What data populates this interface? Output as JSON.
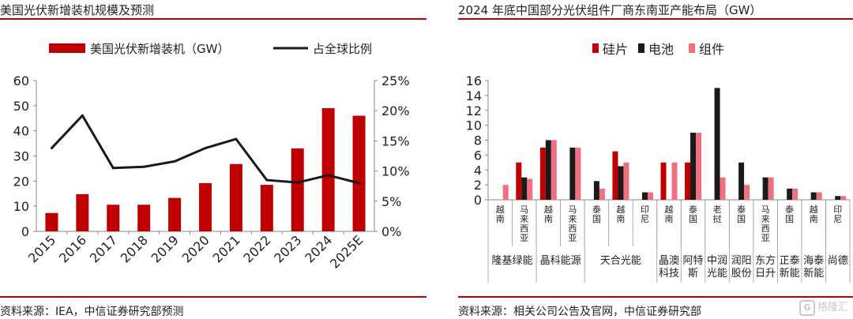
{
  "left": {
    "title": "美国光伏新增装机规模及预测",
    "source": "资料来源：IEA，中信证券研究部预测",
    "colors": {
      "bar": "#c00000",
      "line": "#1a1a1a"
    },
    "chart_data": {
      "type": "bar",
      "categories": [
        "2015",
        "2016",
        "2017",
        "2018",
        "2019",
        "2020",
        "2021",
        "2022",
        "2023",
        "2024",
        "2025E"
      ],
      "series": [
        {
          "name": "美国光伏新增装机（GW）",
          "type": "bar",
          "axis": "left",
          "values": [
            7.3,
            14.8,
            10.6,
            10.6,
            13.3,
            19.2,
            26.8,
            18.5,
            33,
            49,
            46
          ]
        },
        {
          "name": "占全球比例",
          "type": "line",
          "axis": "right",
          "values": [
            13.8,
            19.2,
            10.5,
            10.7,
            11.6,
            13.8,
            15.3,
            8.5,
            8.1,
            9.3,
            8.0
          ]
        }
      ],
      "ylim": [
        0,
        60
      ],
      "yticks": [
        "0",
        "10",
        "20",
        "30",
        "40",
        "50",
        "60"
      ],
      "y2lim": [
        0,
        25
      ],
      "y2ticks": [
        "0%",
        "5%",
        "10%",
        "15%",
        "20%",
        "25%"
      ],
      "legend": "top",
      "grid": false
    }
  },
  "right": {
    "title": "2024 年底中国部分光伏组件厂商东南亚产能布局（GW）",
    "source": "资料来源：相关公司公告及官网，中信证券研究部",
    "colors": {
      "硅片": "#c00000",
      "电池": "#1a1a1a",
      "组件": "#f07080"
    },
    "chart_data": {
      "type": "bar",
      "series_names": [
        "硅片",
        "电池",
        "组件"
      ],
      "categories": [
        "越南",
        "马来西亚",
        "越南",
        "马来西亚",
        "泰国",
        "越南",
        "印尼",
        "越南",
        "泰国",
        "老挝",
        "泰国",
        "马来西亚",
        "泰国",
        "越南",
        "印尼"
      ],
      "series": [
        {
          "name": "硅片",
          "values": [
            0,
            5,
            7,
            0,
            0,
            6.5,
            0,
            5,
            5,
            0,
            0,
            0,
            0,
            0,
            0
          ]
        },
        {
          "name": "电池",
          "values": [
            0,
            3,
            8,
            7,
            2.5,
            4.5,
            1,
            0,
            9,
            15,
            5,
            3,
            1.5,
            1,
            0.5
          ]
        },
        {
          "name": "组件",
          "values": [
            2,
            2.8,
            8,
            7,
            1.5,
            5,
            1,
            5,
            9,
            3,
            2,
            3,
            1.5,
            1,
            0.5
          ]
        }
      ],
      "groups": [
        {
          "label": "隆基绿能",
          "start": 0,
          "span": 2
        },
        {
          "label": "晶科能源",
          "start": 2,
          "span": 2
        },
        {
          "label": "天合光能",
          "start": 4,
          "span": 3
        },
        {
          "label": "晶澳科技",
          "start": 7,
          "span": 1
        },
        {
          "label": "阿特斯",
          "start": 8,
          "span": 1
        },
        {
          "label": "中润光能",
          "start": 9,
          "span": 1
        },
        {
          "label": "润阳股份",
          "start": 10,
          "span": 1
        },
        {
          "label": "东方日升",
          "start": 11,
          "span": 1
        },
        {
          "label": "正泰新能",
          "start": 12,
          "span": 1
        },
        {
          "label": "海泰新能",
          "start": 13,
          "span": 1
        },
        {
          "label": "尚德",
          "start": 14,
          "span": 1
        }
      ],
      "ylim": [
        0,
        16
      ],
      "yticks": [
        "0",
        "2",
        "4",
        "6",
        "8",
        "10",
        "12",
        "14",
        "16"
      ],
      "legend": "top",
      "grid": false
    }
  },
  "watermark": {
    "brand": "格隆汇",
    "icon_glyph": "G"
  }
}
